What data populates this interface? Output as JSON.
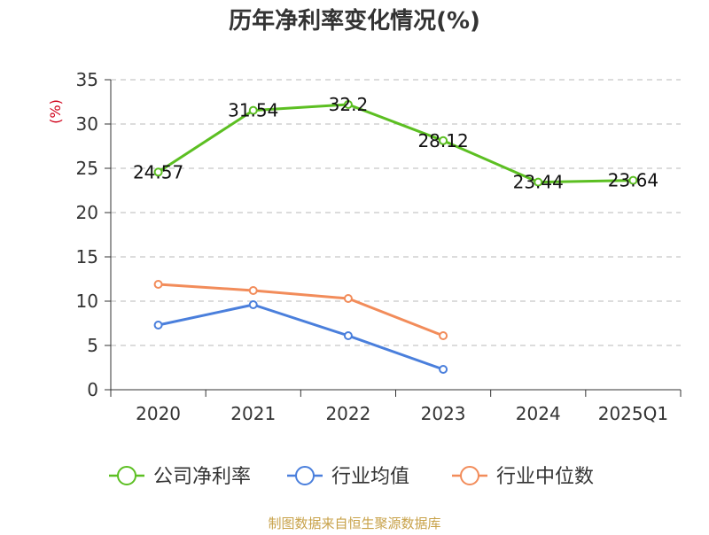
{
  "chart_data": {
    "type": "line",
    "title": "历年净利率变化情况(%)",
    "ylabel": "(%)",
    "xlabel": "",
    "categories": [
      "2020",
      "2021",
      "2022",
      "2023",
      "2024",
      "2025Q1"
    ],
    "ylim": [
      0,
      35
    ],
    "yticks": [
      0,
      5,
      10,
      15,
      20,
      25,
      30,
      35
    ],
    "grid": true,
    "legend_position": "bottom",
    "series": [
      {
        "name": "公司净利率",
        "color": "#5cbf22",
        "values": [
          24.57,
          31.54,
          32.2,
          28.12,
          23.44,
          23.64
        ],
        "labels": [
          "24.57",
          "31.54",
          "32.2",
          "28.12",
          "23.44",
          "23.64"
        ]
      },
      {
        "name": "行业均值",
        "color": "#4a7fdc",
        "values": [
          7.3,
          9.6,
          6.1,
          2.3,
          null,
          null
        ]
      },
      {
        "name": "行业中位数",
        "color": "#f28c5a",
        "values": [
          11.9,
          11.2,
          10.3,
          6.1,
          null,
          null
        ]
      }
    ]
  },
  "footer": {
    "source": "制图数据来自恒生聚源数据库"
  }
}
